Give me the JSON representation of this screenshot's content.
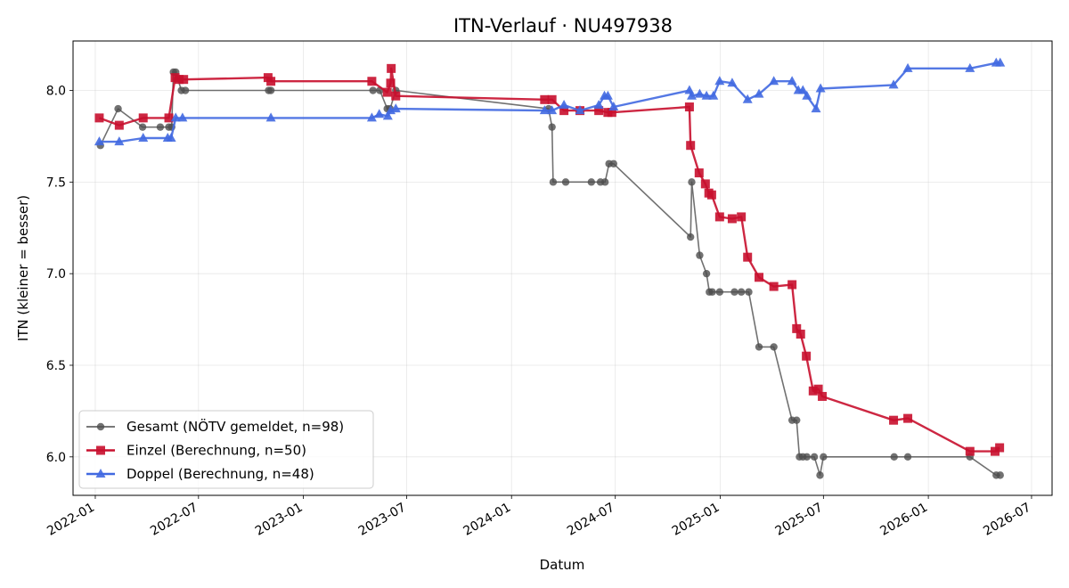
{
  "chart_data": {
    "type": "line",
    "title": "ITN-Verlauf · NU497938",
    "xlabel": "Datum",
    "ylabel": "ITN  (kleiner = besser)",
    "xlim": [
      "2021-11-23",
      "2026-08-06"
    ],
    "ylim": [
      5.79,
      8.27
    ],
    "x_ticks": [
      "2022-01",
      "2022-07",
      "2023-01",
      "2023-07",
      "2024-01",
      "2024-07",
      "2025-01",
      "2025-07",
      "2026-01",
      "2026-07"
    ],
    "y_ticks": [
      "6.0",
      "6.5",
      "7.0",
      "7.5",
      "8.0"
    ],
    "grid": true,
    "legend_position": "lower-left",
    "series": [
      {
        "name": "Gesamt (NÖTV gemeldet, n=98)",
        "color": "#4d4d4d",
        "marker": "circle",
        "points": [
          [
            "2022-01-10",
            7.7
          ],
          [
            "2022-02-10",
            7.9
          ],
          [
            "2022-03-25",
            7.8
          ],
          [
            "2022-04-25",
            7.8
          ],
          [
            "2022-05-10",
            7.8
          ],
          [
            "2022-05-15",
            7.8
          ],
          [
            "2022-05-18",
            8.1
          ],
          [
            "2022-05-22",
            8.1
          ],
          [
            "2022-06-01",
            8.0
          ],
          [
            "2022-06-08",
            8.0
          ],
          [
            "2022-11-01",
            8.0
          ],
          [
            "2022-11-05",
            8.0
          ],
          [
            "2023-05-03",
            8.0
          ],
          [
            "2023-05-15",
            8.0
          ],
          [
            "2023-05-28",
            7.9
          ],
          [
            "2023-06-02",
            7.9
          ],
          [
            "2023-06-12",
            8.0
          ],
          [
            "2024-03-06",
            7.9
          ],
          [
            "2024-03-12",
            7.8
          ],
          [
            "2024-03-14",
            7.5
          ],
          [
            "2024-04-05",
            7.5
          ],
          [
            "2024-05-20",
            7.5
          ],
          [
            "2024-06-05",
            7.5
          ],
          [
            "2024-06-13",
            7.5
          ],
          [
            "2024-06-20",
            7.6
          ],
          [
            "2024-06-28",
            7.6
          ],
          [
            "2024-11-10",
            7.2
          ],
          [
            "2024-11-12",
            7.5
          ],
          [
            "2024-11-26",
            7.1
          ],
          [
            "2024-12-08",
            7.0
          ],
          [
            "2024-12-13",
            6.9
          ],
          [
            "2024-12-18",
            6.9
          ],
          [
            "2024-12-31",
            6.9
          ],
          [
            "2025-01-26",
            6.9
          ],
          [
            "2025-02-07",
            6.9
          ],
          [
            "2025-02-20",
            6.9
          ],
          [
            "2025-03-10",
            6.6
          ],
          [
            "2025-04-05",
            6.6
          ],
          [
            "2025-05-07",
            6.2
          ],
          [
            "2025-05-15",
            6.2
          ],
          [
            "2025-05-20",
            6.0
          ],
          [
            "2025-05-26",
            6.0
          ],
          [
            "2025-06-02",
            6.0
          ],
          [
            "2025-06-15",
            6.0
          ],
          [
            "2025-06-25",
            5.9
          ],
          [
            "2025-07-01",
            6.0
          ],
          [
            "2025-11-02",
            6.0
          ],
          [
            "2025-11-26",
            6.0
          ],
          [
            "2026-03-15",
            6.0
          ],
          [
            "2026-04-30",
            5.9
          ],
          [
            "2026-05-07",
            5.9
          ]
        ]
      },
      {
        "name": "Einzel (Berechnung, n=50)",
        "color": "#c8102e",
        "marker": "square",
        "points": [
          [
            "2022-01-08",
            7.85
          ],
          [
            "2022-02-12",
            7.81
          ],
          [
            "2022-03-26",
            7.85
          ],
          [
            "2022-05-10",
            7.85
          ],
          [
            "2022-05-21",
            8.07
          ],
          [
            "2022-05-28",
            8.06
          ],
          [
            "2022-06-05",
            8.06
          ],
          [
            "2022-10-31",
            8.07
          ],
          [
            "2022-11-05",
            8.05
          ],
          [
            "2023-05-01",
            8.05
          ],
          [
            "2023-05-28",
            7.99
          ],
          [
            "2023-06-03",
            8.04
          ],
          [
            "2023-06-04",
            8.12
          ],
          [
            "2023-06-12",
            7.97
          ],
          [
            "2024-02-28",
            7.95
          ],
          [
            "2024-03-12",
            7.95
          ],
          [
            "2024-04-02",
            7.89
          ],
          [
            "2024-04-30",
            7.89
          ],
          [
            "2024-06-02",
            7.89
          ],
          [
            "2024-06-18",
            7.88
          ],
          [
            "2024-06-25",
            7.88
          ],
          [
            "2024-11-08",
            7.91
          ],
          [
            "2024-11-10",
            7.7
          ],
          [
            "2024-11-25",
            7.55
          ],
          [
            "2024-12-06",
            7.49
          ],
          [
            "2024-12-12",
            7.44
          ],
          [
            "2024-12-17",
            7.43
          ],
          [
            "2024-12-31",
            7.31
          ],
          [
            "2025-01-22",
            7.3
          ],
          [
            "2025-02-07",
            7.31
          ],
          [
            "2025-02-18",
            7.09
          ],
          [
            "2025-03-10",
            6.98
          ],
          [
            "2025-04-05",
            6.93
          ],
          [
            "2025-05-07",
            6.94
          ],
          [
            "2025-05-15",
            6.7
          ],
          [
            "2025-05-22",
            6.67
          ],
          [
            "2025-06-01",
            6.55
          ],
          [
            "2025-06-13",
            6.36
          ],
          [
            "2025-06-22",
            6.37
          ],
          [
            "2025-06-29",
            6.33
          ],
          [
            "2025-11-01",
            6.2
          ],
          [
            "2025-11-26",
            6.21
          ],
          [
            "2026-03-15",
            6.03
          ],
          [
            "2026-04-28",
            6.03
          ],
          [
            "2026-05-06",
            6.05
          ]
        ]
      },
      {
        "name": "Doppel (Berechnung, n=48)",
        "color": "#4169e1",
        "marker": "triangle",
        "points": [
          [
            "2022-01-08",
            7.72
          ],
          [
            "2022-02-12",
            7.72
          ],
          [
            "2022-03-26",
            7.74
          ],
          [
            "2022-05-08",
            7.74
          ],
          [
            "2022-05-14",
            7.74
          ],
          [
            "2022-05-22",
            7.85
          ],
          [
            "2022-06-03",
            7.85
          ],
          [
            "2022-11-05",
            7.85
          ],
          [
            "2023-05-01",
            7.85
          ],
          [
            "2023-05-14",
            7.87
          ],
          [
            "2023-05-29",
            7.86
          ],
          [
            "2023-06-03",
            7.89
          ],
          [
            "2023-06-12",
            7.9
          ],
          [
            "2024-02-28",
            7.89
          ],
          [
            "2024-03-12",
            7.89
          ],
          [
            "2024-04-02",
            7.92
          ],
          [
            "2024-04-30",
            7.89
          ],
          [
            "2024-06-02",
            7.92
          ],
          [
            "2024-06-12",
            7.97
          ],
          [
            "2024-06-18",
            7.97
          ],
          [
            "2024-06-28",
            7.91
          ],
          [
            "2024-11-08",
            8.0
          ],
          [
            "2024-11-12",
            7.97
          ],
          [
            "2024-11-26",
            7.98
          ],
          [
            "2024-12-08",
            7.97
          ],
          [
            "2024-12-20",
            7.97
          ],
          [
            "2024-12-31",
            8.05
          ],
          [
            "2025-01-22",
            8.04
          ],
          [
            "2025-02-18",
            7.95
          ],
          [
            "2025-03-10",
            7.98
          ],
          [
            "2025-04-05",
            8.05
          ],
          [
            "2025-05-07",
            8.05
          ],
          [
            "2025-05-18",
            8.0
          ],
          [
            "2025-05-26",
            8.0
          ],
          [
            "2025-06-02",
            7.97
          ],
          [
            "2025-06-18",
            7.9
          ],
          [
            "2025-06-26",
            8.01
          ],
          [
            "2025-11-01",
            8.03
          ],
          [
            "2025-11-26",
            8.12
          ],
          [
            "2026-03-15",
            8.12
          ],
          [
            "2026-04-30",
            8.15
          ],
          [
            "2026-05-07",
            8.15
          ]
        ]
      }
    ]
  }
}
